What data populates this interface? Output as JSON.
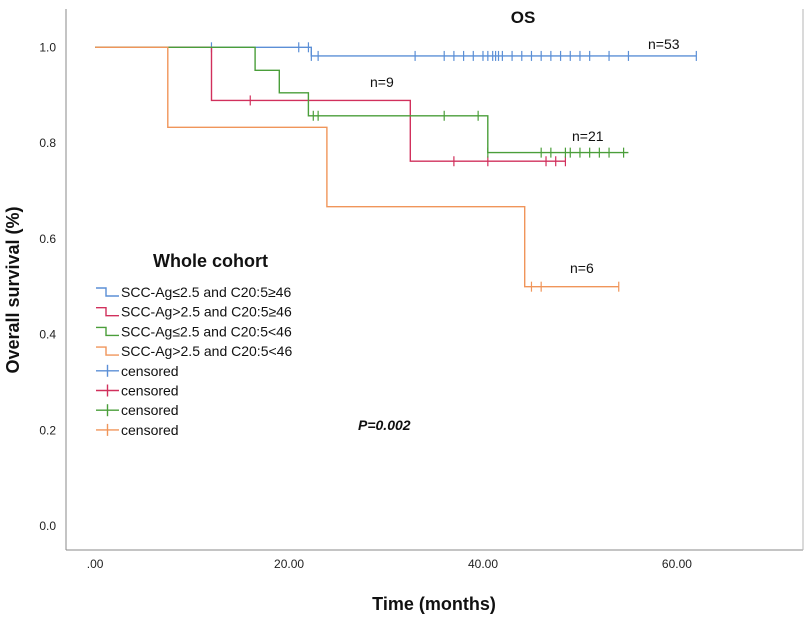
{
  "chart_data": {
    "type": "line",
    "subtype": "kaplan-meier",
    "title": "OS",
    "xlabel": "Time (months)",
    "ylabel": "Overall survival (%)",
    "xlim": [
      -3,
      73
    ],
    "ylim": [
      -0.05,
      1.08
    ],
    "x_ticks": [
      0,
      20,
      40,
      60
    ],
    "x_tick_labels": [
      ".00",
      "20.00",
      "40.00",
      "60.00"
    ],
    "y_ticks": [
      0,
      0.2,
      0.4,
      0.6,
      0.8,
      1.0
    ],
    "y_tick_labels": [
      "0.0",
      "0.2",
      "0.4",
      "0.6",
      "0.8",
      "1.0"
    ],
    "legend_title": "Whole cohort",
    "legend_position": "center-left",
    "p_value_label": "P=0.002",
    "series": [
      {
        "name": "SCC-Ag≤2.5 and C20:5≥46",
        "color": "#5b8fd6",
        "end_label": "n=53",
        "steps": [
          [
            0,
            1.0
          ],
          [
            22.3,
            0.982
          ],
          [
            62,
            0.982
          ]
        ],
        "censored": [
          [
            12,
            1.0
          ],
          [
            21,
            1.0
          ],
          [
            22,
            1.0
          ],
          [
            22.3,
            0.982
          ],
          [
            23,
            0.982
          ],
          [
            33,
            0.982
          ],
          [
            36,
            0.982
          ],
          [
            37,
            0.982
          ],
          [
            38,
            0.982
          ],
          [
            39,
            0.982
          ],
          [
            40,
            0.982
          ],
          [
            40.5,
            0.982
          ],
          [
            41,
            0.982
          ],
          [
            41.3,
            0.982
          ],
          [
            41.6,
            0.982
          ],
          [
            42,
            0.982
          ],
          [
            43,
            0.982
          ],
          [
            44,
            0.982
          ],
          [
            45,
            0.982
          ],
          [
            46,
            0.982
          ],
          [
            47,
            0.982
          ],
          [
            48,
            0.982
          ],
          [
            49,
            0.982
          ],
          [
            50,
            0.982
          ],
          [
            51,
            0.982
          ],
          [
            53,
            0.982
          ],
          [
            55,
            0.982
          ],
          [
            62,
            0.982
          ]
        ]
      },
      {
        "name": "SCC-Ag>2.5 and C20:5≥46",
        "color": "#d1305c",
        "end_label": "n=9",
        "steps": [
          [
            0,
            1.0
          ],
          [
            12,
            0.889
          ],
          [
            32.5,
            0.762
          ],
          [
            48.5,
            0.762
          ]
        ],
        "censored": [
          [
            16,
            0.889
          ],
          [
            37,
            0.762
          ],
          [
            40.5,
            0.762
          ],
          [
            46.5,
            0.762
          ],
          [
            47.5,
            0.762
          ],
          [
            48.5,
            0.762
          ]
        ]
      },
      {
        "name": "SCC-Ag≤2.5 and C20:5<46",
        "color": "#4a9e3a",
        "end_label": "n=21",
        "steps": [
          [
            0,
            1.0
          ],
          [
            16.5,
            0.952
          ],
          [
            19,
            0.905
          ],
          [
            22,
            0.857
          ],
          [
            40.5,
            0.78
          ],
          [
            55,
            0.78
          ]
        ],
        "censored": [
          [
            22.5,
            0.857
          ],
          [
            23,
            0.857
          ],
          [
            36,
            0.857
          ],
          [
            39.5,
            0.857
          ],
          [
            40.5,
            0.78
          ],
          [
            46,
            0.78
          ],
          [
            47,
            0.78
          ],
          [
            48.5,
            0.78
          ],
          [
            49,
            0.78
          ],
          [
            50,
            0.78
          ],
          [
            51,
            0.78
          ],
          [
            52,
            0.78
          ],
          [
            53,
            0.78
          ],
          [
            54.5,
            0.78
          ]
        ]
      },
      {
        "name": "SCC-Ag>2.5 and C20:5<46",
        "color": "#f0955a",
        "end_label": "n=6",
        "steps": [
          [
            0,
            1.0
          ],
          [
            7.5,
            0.833
          ],
          [
            23.9,
            0.667
          ],
          [
            44.3,
            0.5
          ],
          [
            54,
            0.5
          ]
        ],
        "censored": [
          [
            45,
            0.5
          ],
          [
            46,
            0.5
          ],
          [
            54,
            0.5
          ]
        ]
      }
    ],
    "censored_legend_label": "censored"
  }
}
